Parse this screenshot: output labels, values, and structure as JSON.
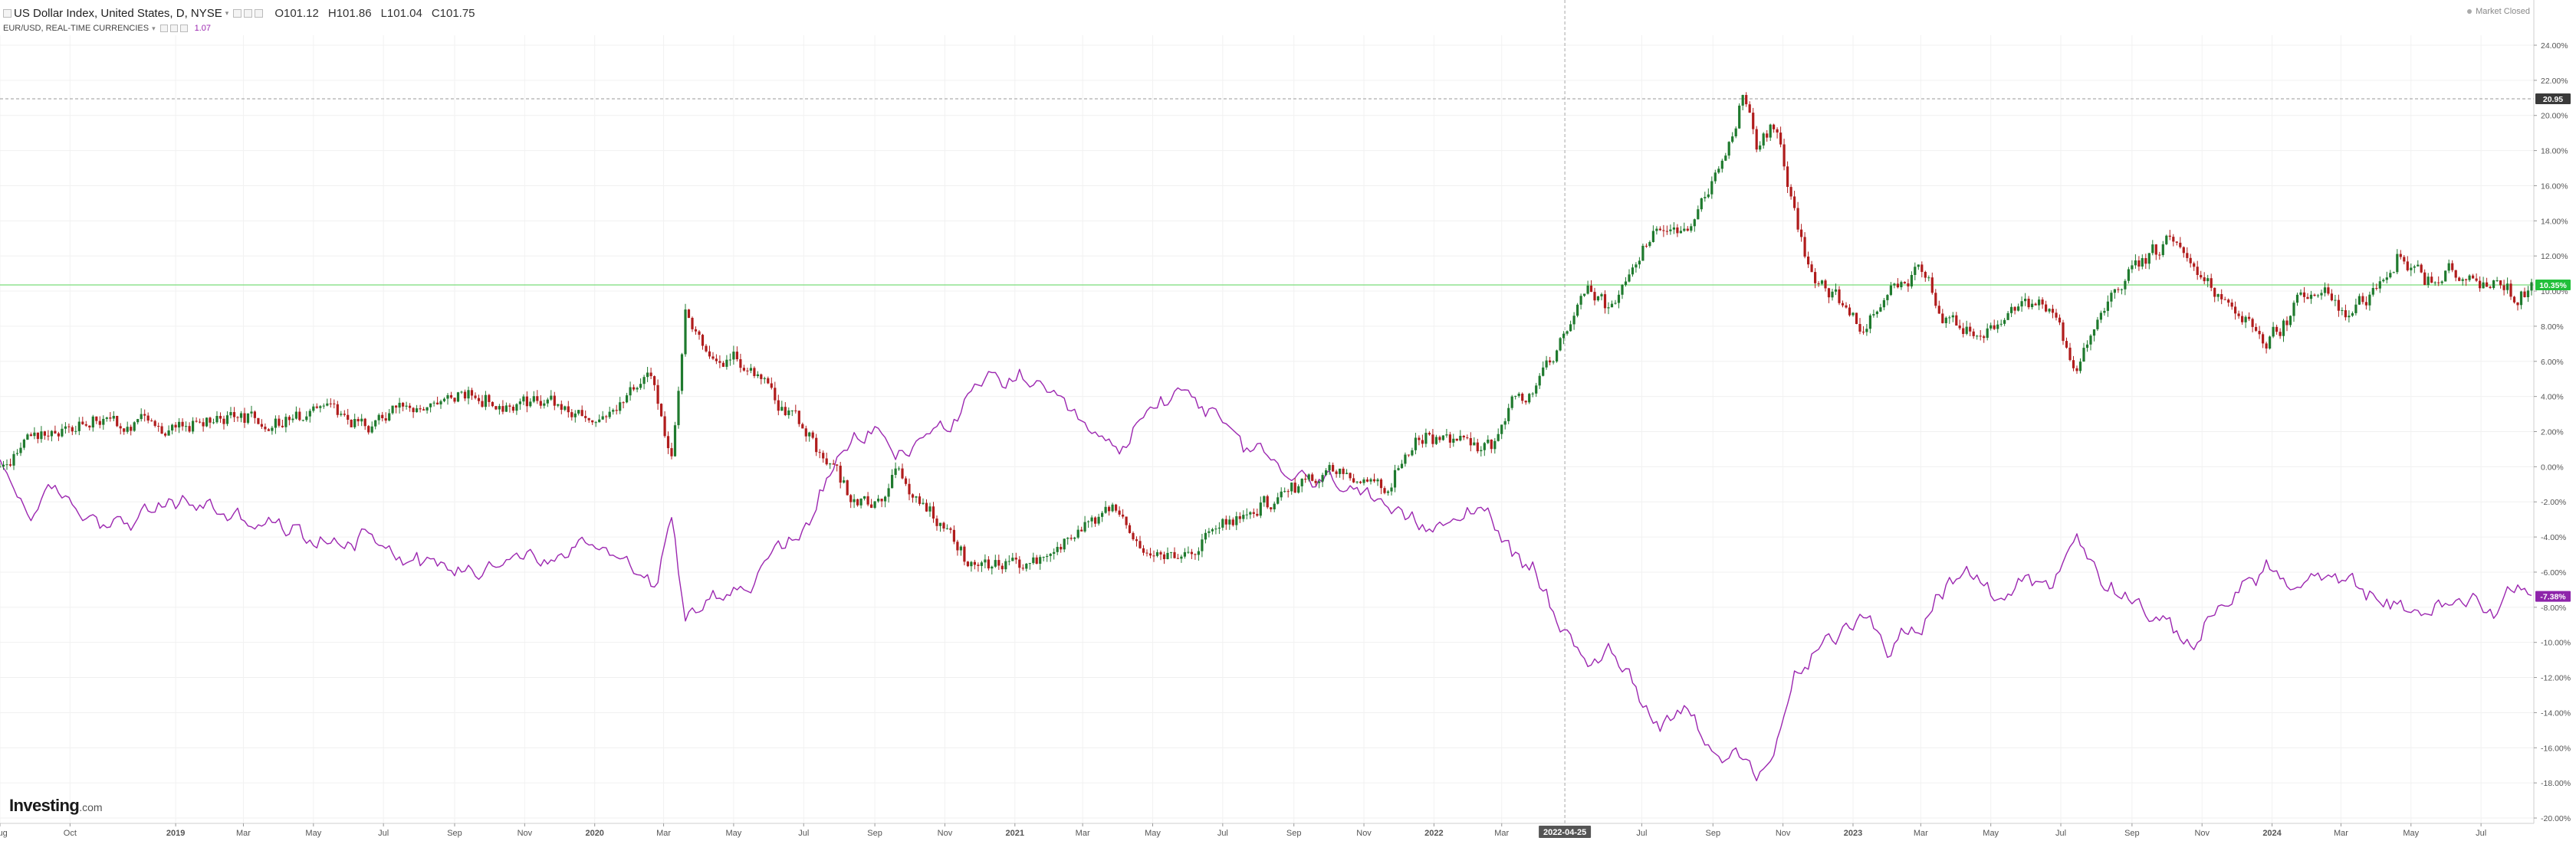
{
  "header": {
    "symbol_title": "US Dollar Index, United States, D, NYSE",
    "open": "O101.12",
    "high": "H101.86",
    "low": "L101.04",
    "close": "C101.75",
    "compare_title": "EUR/USD, REAL-TIME CURRENCIES",
    "compare_value": "1.07",
    "market_status": "Market Closed"
  },
  "logo": {
    "brand": "Investing",
    "suffix": ".com"
  },
  "colors": {
    "up_candle": "#1f7a2e",
    "down_candle": "#b01c1c",
    "compare_line": "#9c27b0",
    "crosshair_h": "#7bdc7b",
    "dxy_badge": "#22c03a",
    "eur_badge": "#8e24aa",
    "max_badge": "#3a3a3a",
    "date_badge": "#555555"
  },
  "chart_data": {
    "type": "line",
    "xlim": [
      "2018-08-01",
      "2024-08-16"
    ],
    "ylim": [
      -20,
      25
    ],
    "ytick_values": [
      24,
      22,
      20,
      18,
      16,
      14,
      12,
      10,
      8,
      6,
      4,
      2,
      0,
      -2,
      -4,
      -6,
      -8,
      -10,
      -12,
      -14,
      -16,
      -18,
      -20
    ],
    "ytick_labels": [
      "24.00%",
      "22.00%",
      "20.00%",
      "18.00%",
      "16.00%",
      "14.00%",
      "12.00%",
      "10.00%",
      "8.00%",
      "6.00%",
      "4.00%",
      "2.00%",
      "0.00%",
      "-2.00%",
      "-4.00%",
      "-6.00%",
      "-8.00%",
      "-10.00%",
      "-12.00%",
      "-14.00%",
      "-16.00%",
      "-18.00%",
      "-20.00%"
    ],
    "xtick_dates": [
      "2018-08-01",
      "2018-10-01",
      "2019-01-01",
      "2019-03-01",
      "2019-05-01",
      "2019-07-01",
      "2019-09-01",
      "2019-11-01",
      "2020-01-01",
      "2020-03-01",
      "2020-05-01",
      "2020-07-01",
      "2020-09-01",
      "2020-11-01",
      "2021-01-01",
      "2021-03-01",
      "2021-05-01",
      "2021-07-01",
      "2021-09-01",
      "2021-11-01",
      "2022-01-01",
      "2022-03-01",
      "2022-07-01",
      "2022-09-01",
      "2022-11-01",
      "2023-01-01",
      "2023-03-01",
      "2023-05-01",
      "2023-07-01",
      "2023-09-01",
      "2023-11-01",
      "2024-01-01",
      "2024-03-01",
      "2024-05-01",
      "2024-07-01"
    ],
    "xtick_labels": [
      "Aug",
      "Oct",
      "2019",
      "Mar",
      "May",
      "Jul",
      "Sep",
      "Nov",
      "2020",
      "Mar",
      "May",
      "Jul",
      "Sep",
      "Nov",
      "2021",
      "Mar",
      "May",
      "Jul",
      "Sep",
      "Nov",
      "2022",
      "Mar",
      "Jul",
      "Sep",
      "Nov",
      "2023",
      "Mar",
      "May",
      "Jul",
      "Sep",
      "Nov",
      "2024",
      "Mar",
      "May",
      "Jul"
    ],
    "grid": true,
    "series": [
      {
        "name": "US Dollar Index",
        "style": "candlestick",
        "x": [
          "2018-08-01",
          "2018-08-25",
          "2018-09-20",
          "2018-10-20",
          "2018-11-20",
          "2018-12-20",
          "2019-01-20",
          "2019-02-20",
          "2019-03-20",
          "2019-04-20",
          "2019-05-20",
          "2019-06-20",
          "2019-07-20",
          "2019-08-20",
          "2019-09-20",
          "2019-10-20",
          "2019-11-20",
          "2019-12-20",
          "2020-01-20",
          "2020-02-20",
          "2020-03-08",
          "2020-03-20",
          "2020-04-10",
          "2020-05-01",
          "2020-05-20",
          "2020-06-10",
          "2020-07-01",
          "2020-07-20",
          "2020-08-10",
          "2020-09-01",
          "2020-09-20",
          "2020-10-10",
          "2020-11-01",
          "2020-11-20",
          "2020-12-10",
          "2021-01-06",
          "2021-02-01",
          "2021-03-01",
          "2021-03-31",
          "2021-04-20",
          "2021-05-25",
          "2021-06-20",
          "2021-07-20",
          "2021-08-20",
          "2021-09-20",
          "2021-10-20",
          "2021-11-20",
          "2021-12-20",
          "2022-01-20",
          "2022-02-20",
          "2022-03-10",
          "2022-04-01",
          "2022-04-25",
          "2022-05-15",
          "2022-06-01",
          "2022-06-25",
          "2022-07-15",
          "2022-08-10",
          "2022-09-01",
          "2022-09-27",
          "2022-10-10",
          "2022-10-25",
          "2022-11-10",
          "2022-11-25",
          "2022-12-15",
          "2023-01-10",
          "2023-02-01",
          "2023-03-01",
          "2023-03-20",
          "2023-04-15",
          "2023-05-10",
          "2023-06-01",
          "2023-06-25",
          "2023-07-14",
          "2023-08-05",
          "2023-09-01",
          "2023-10-01",
          "2023-10-25",
          "2023-11-20",
          "2023-12-27",
          "2024-01-20",
          "2024-02-14",
          "2024-03-08",
          "2024-04-01",
          "2024-04-20",
          "2024-05-15",
          "2024-06-05",
          "2024-06-26",
          "2024-07-15",
          "2024-08-01",
          "2024-08-16"
        ],
        "y": [
          0,
          1.5,
          2.2,
          2.8,
          2.5,
          2.0,
          2.5,
          2.7,
          2.5,
          3.2,
          3.0,
          2.2,
          3.5,
          3.8,
          4.2,
          3.5,
          3.8,
          2.8,
          3.5,
          5.0,
          0.5,
          8.5,
          5.5,
          6.0,
          5.5,
          3.5,
          2.5,
          0.5,
          -1.5,
          -2.0,
          -0.5,
          -1.8,
          -3.0,
          -5.0,
          -5.5,
          -6.0,
          -5.0,
          -3.5,
          -2.0,
          -4.5,
          -5.5,
          -3.5,
          -2.5,
          -2.0,
          -0.5,
          0,
          -1.0,
          2.0,
          1.5,
          1.0,
          3.5,
          4.5,
          8.0,
          10.5,
          9.0,
          12.0,
          14.0,
          13.0,
          16.0,
          20.9,
          18.0,
          19.5,
          15.0,
          11.0,
          10.0,
          8.0,
          10.0,
          11.5,
          8.5,
          7.5,
          8.0,
          9.5,
          8.5,
          5.5,
          8.5,
          11.0,
          12.8,
          12.0,
          9.5,
          6.8,
          9.0,
          10.0,
          8.5,
          10.0,
          12.0,
          10.5,
          11.0,
          10.5,
          10.0,
          9.5,
          10.35
        ]
      },
      {
        "name": "EUR/USD",
        "style": "line",
        "x": [
          "2018-08-01",
          "2018-08-25",
          "2018-09-20",
          "2018-10-20",
          "2018-11-20",
          "2018-12-20",
          "2019-01-20",
          "2019-02-20",
          "2019-03-20",
          "2019-04-20",
          "2019-05-20",
          "2019-06-20",
          "2019-07-20",
          "2019-08-20",
          "2019-09-20",
          "2019-10-20",
          "2019-11-20",
          "2019-12-20",
          "2020-01-20",
          "2020-02-20",
          "2020-03-08",
          "2020-03-20",
          "2020-04-10",
          "2020-05-01",
          "2020-05-20",
          "2020-06-10",
          "2020-07-01",
          "2020-07-20",
          "2020-08-10",
          "2020-09-01",
          "2020-09-20",
          "2020-10-10",
          "2020-11-01",
          "2020-11-20",
          "2020-12-10",
          "2021-01-06",
          "2021-02-01",
          "2021-03-01",
          "2021-03-31",
          "2021-04-20",
          "2021-05-25",
          "2021-06-20",
          "2021-07-20",
          "2021-08-20",
          "2021-09-20",
          "2021-10-20",
          "2021-11-20",
          "2021-12-20",
          "2022-01-20",
          "2022-02-20",
          "2022-03-10",
          "2022-04-01",
          "2022-04-25",
          "2022-05-15",
          "2022-06-01",
          "2022-06-25",
          "2022-07-15",
          "2022-08-10",
          "2022-09-01",
          "2022-09-27",
          "2022-10-10",
          "2022-10-25",
          "2022-11-10",
          "2022-11-25",
          "2022-12-15",
          "2023-01-10",
          "2023-02-01",
          "2023-03-01",
          "2023-03-20",
          "2023-04-15",
          "2023-05-10",
          "2023-06-01",
          "2023-06-25",
          "2023-07-14",
          "2023-08-05",
          "2023-09-01",
          "2023-10-01",
          "2023-10-25",
          "2023-11-20",
          "2023-12-27",
          "2024-01-20",
          "2024-02-14",
          "2024-03-08",
          "2024-04-01",
          "2024-04-20",
          "2024-05-15",
          "2024-06-05",
          "2024-06-26",
          "2024-07-15",
          "2024-08-01",
          "2024-08-16"
        ],
        "y": [
          0,
          -2.5,
          -1.5,
          -3.0,
          -3.5,
          -2.5,
          -2.0,
          -3.0,
          -3.5,
          -4.0,
          -4.5,
          -3.5,
          -5.0,
          -5.5,
          -6.0,
          -5.0,
          -5.5,
          -4.5,
          -4.5,
          -6.5,
          -3.0,
          -8.5,
          -6.5,
          -7.0,
          -6.5,
          -4.5,
          -3.5,
          -1.0,
          1.0,
          2.0,
          0.5,
          1.5,
          2.5,
          3.5,
          4.8,
          5.3,
          3.5,
          2.0,
          0.5,
          2.5,
          4.5,
          3.0,
          1.0,
          0,
          -1.0,
          -0.5,
          -3.0,
          -3.5,
          -2.5,
          -2.5,
          -5.5,
          -6.0,
          -9.5,
          -11.0,
          -10.5,
          -12.5,
          -14.5,
          -13.5,
          -16.0,
          -17.0,
          -18.5,
          -16.5,
          -12.0,
          -11.0,
          -10.0,
          -8.0,
          -10.0,
          -9.0,
          -7.0,
          -6.5,
          -7.5,
          -6.0,
          -7.0,
          -4.0,
          -6.5,
          -7.5,
          -9.5,
          -10.0,
          -7.5,
          -5.5,
          -7.0,
          -6.5,
          -7.0,
          -7.5,
          -8.5,
          -8.0,
          -8.0,
          -7.5,
          -8.0,
          -6.5,
          -7.38
        ]
      }
    ],
    "annotations": {
      "max_line_value": 20.95,
      "max_label": "20.95",
      "current_dxy_value": 10.35,
      "current_dxy_label": "10.35%",
      "current_eur_value": -7.38,
      "current_eur_label": "-7.38%",
      "crosshair_date": "2022-04-25",
      "crosshair_label": "2022-04-25"
    }
  }
}
